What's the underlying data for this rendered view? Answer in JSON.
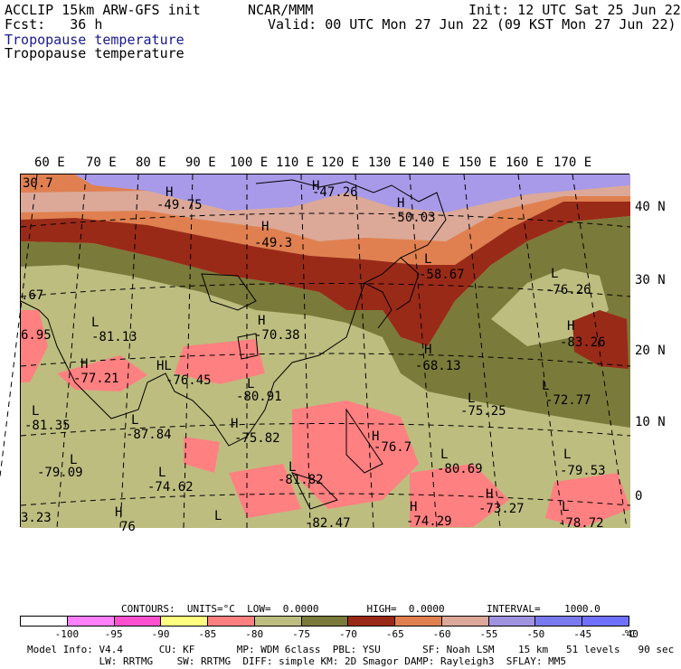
{
  "header": {
    "model": "ACCLIP 15km ARW-GFS init",
    "fcst": "Fcst:   36 h",
    "center": "NCAR/MMM",
    "init": "Init: 12 UTC Sat 25 Jun 22",
    "valid": "Valid: 00 UTC Mon 27 Jun 22 (09 KST Mon 27 Jun 22)",
    "field1": "Tropopause temperature",
    "field2": "Tropopause temperature"
  },
  "lon_labels": [
    "60 E",
    "70 E",
    "80 E",
    "90 E",
    "100 E",
    "110 E",
    "120 E",
    "130 E",
    "140 E",
    "150 E",
    "160 E",
    "170 E"
  ],
  "lat_labels": [
    "40 N",
    "30 N",
    "20 N",
    "10 N",
    "0"
  ],
  "map_labels": [
    {
      "t": "30.7"
    },
    {
      "t": "H"
    },
    {
      "t": "-49.75"
    },
    {
      "t": "H"
    },
    {
      "t": "-47.26"
    },
    {
      "t": "H"
    },
    {
      "t": "-50.03"
    },
    {
      "t": "H"
    },
    {
      "t": "-49.3"
    },
    {
      "t": "L"
    },
    {
      "t": "-58.67"
    },
    {
      "t": "L"
    },
    {
      "t": "-76.26"
    },
    {
      "t": ".67"
    },
    {
      "t": "L"
    },
    {
      "t": "-81.13"
    },
    {
      "t": "H"
    },
    {
      "t": "-70.38"
    },
    {
      "t": "H"
    },
    {
      "t": "-83.26"
    },
    {
      "t": "6.95"
    },
    {
      "t": "H"
    },
    {
      "t": "-77.21"
    },
    {
      "t": "HL"
    },
    {
      "t": "-76.45"
    },
    {
      "t": "H"
    },
    {
      "t": "-68.13"
    },
    {
      "t": "L"
    },
    {
      "t": "-80.91"
    },
    {
      "t": "L"
    },
    {
      "t": "-72.77"
    },
    {
      "t": "L"
    },
    {
      "t": "-75.25"
    },
    {
      "t": "L"
    },
    {
      "t": "-81.35"
    },
    {
      "t": "L"
    },
    {
      "t": "-87.84"
    },
    {
      "t": "H"
    },
    {
      "t": "-75.82"
    },
    {
      "t": "H"
    },
    {
      "t": "-76.7"
    },
    {
      "t": "L"
    },
    {
      "t": "-80.69"
    },
    {
      "t": "L"
    },
    {
      "t": "-79.53"
    },
    {
      "t": "L"
    },
    {
      "t": "-79.09"
    },
    {
      "t": "L"
    },
    {
      "t": "-74.62"
    },
    {
      "t": "L"
    },
    {
      "t": "-81.82"
    },
    {
      "t": "H"
    },
    {
      "t": "-73.27"
    },
    {
      "t": "H"
    },
    {
      "t": "-74.29"
    },
    {
      "t": "L"
    },
    {
      "t": "-78.72"
    },
    {
      "t": "3.23"
    },
    {
      "t": "H"
    },
    {
      "t": "76"
    },
    {
      "t": "L"
    },
    {
      "t": "-82.47"
    }
  ],
  "contours": "CONTOURS:  UNITS=°C  LOW=  0.0000        HIGH=  0.0000       INTERVAL=    1000.0",
  "legend": {
    "colors": [
      "#ffffff",
      "#ff80ff",
      "#ff50d0",
      "#ffff80",
      "#ff8080",
      "#bdbd80",
      "#7a7a3a",
      "#9a2a18",
      "#e08050",
      "#dca898",
      "#9f93e0",
      "#7a7af0",
      "#7070ff"
    ],
    "ticks": [
      "-100",
      "-95",
      "-90",
      "-85",
      "-80",
      "-75",
      "-70",
      "-65",
      "-60",
      "-55",
      "-50",
      "-45",
      "-40",
      "°C"
    ]
  },
  "footer": {
    "line1": "Model Info: V4.4      CU: KF       MP: WDM 6class  PBL: YSU       SF: Noah LSM    15 km   51 levels   90 sec",
    "line2": "            LW: RRTMG    SW: RRTMG  DIFF: simple KM: 2D Smagor DAMP: Rayleigh3  SFLAY: MM5"
  },
  "palette": {
    "lavender": "#a89ae8",
    "pinkbrown": "#dca898",
    "orange": "#e08050",
    "darkred": "#9a2a18",
    "olive": "#7a7a3a",
    "khaki": "#bdbd80",
    "salmon": "#ff8080"
  }
}
